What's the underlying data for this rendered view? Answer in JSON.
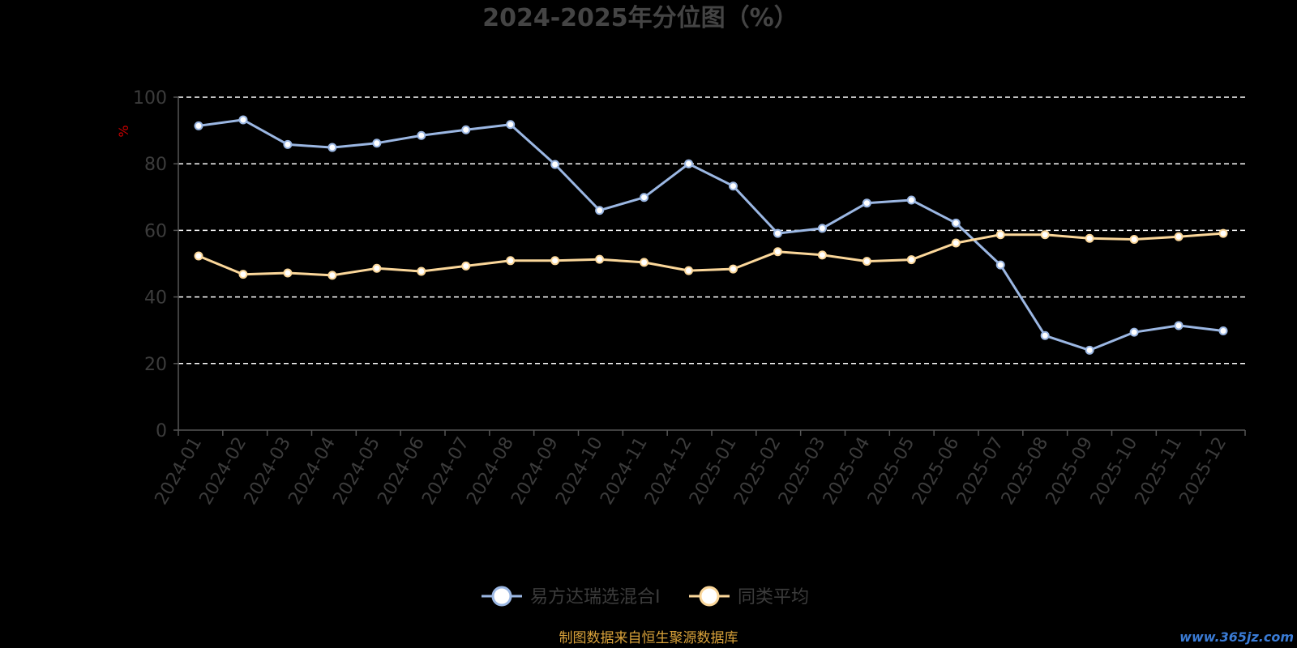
{
  "colors": {
    "background": "#000000",
    "axis": "#555555",
    "grid": "#ffffff",
    "series": [
      "#9bb7e3",
      "#fbd79a"
    ],
    "point_fill": "#ffffff",
    "source_text": "#d9a23a",
    "watermark": "#3a7bd5",
    "unit": "#cc0000"
  },
  "source_note": "制图数据来自恒生聚源数据库",
  "watermark": "www.365jz.com",
  "chart_data": {
    "type": "line",
    "title": "2024-2025年分位图（%）",
    "ylabel": "%",
    "xlabel": "",
    "ylim": [
      0,
      100
    ],
    "yticks": [
      0,
      20,
      40,
      60,
      80,
      100
    ],
    "grid": true,
    "grid_style": "dashed",
    "legend_position": "bottom-center",
    "categories": [
      "2024-01",
      "2024-02",
      "2024-03",
      "2024-04",
      "2024-05",
      "2024-06",
      "2024-07",
      "2024-08",
      "2024-09",
      "2024-10",
      "2024-11",
      "2024-12",
      "2025-01",
      "2025-02",
      "2025-03",
      "2025-04",
      "2025-05",
      "2025-06",
      "2025-07",
      "2025-08",
      "2025-09",
      "2025-10",
      "2025-11",
      "2025-12"
    ],
    "series": [
      {
        "name": "易方达瑞选混合I",
        "values": [
          91.4,
          93.2,
          85.8,
          84.9,
          86.2,
          88.5,
          90.2,
          91.8,
          79.8,
          66.0,
          69.9,
          80.0,
          73.3,
          59.1,
          60.6,
          68.2,
          69.1,
          62.2,
          49.6,
          28.4,
          24.0,
          29.4,
          31.4,
          29.8
        ]
      },
      {
        "name": "同类平均",
        "values": [
          52.3,
          46.8,
          47.2,
          46.5,
          48.6,
          47.7,
          49.3,
          50.9,
          50.9,
          51.3,
          50.4,
          47.9,
          48.4,
          53.6,
          52.6,
          50.7,
          51.2,
          56.2,
          58.7,
          58.7,
          57.6,
          57.3,
          58.1,
          59.1
        ]
      }
    ]
  }
}
